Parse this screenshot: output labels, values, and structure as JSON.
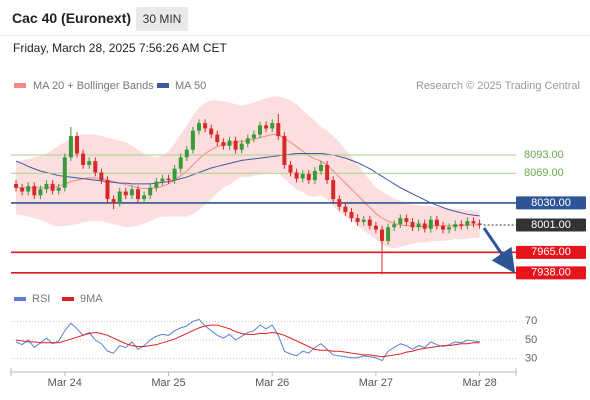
{
  "header": {
    "title": "Cac 40 (Euronext)",
    "interval": "30 MIN",
    "timestamp": "Friday, March 28, 2025 7:56:26 AM CET"
  },
  "chart_data": [
    {
      "type": "candlestick",
      "source": "Research © 2025 Trading Central",
      "ylim": [
        7922,
        8172
      ],
      "up_color": "#3a9a3a",
      "down_color": "#d62a2a",
      "categories": [
        null,
        null,
        null,
        null,
        null,
        null,
        null,
        null,
        "Mar 24",
        null,
        null,
        null,
        null,
        null,
        null,
        null,
        null,
        null,
        null,
        null,
        null,
        null,
        null,
        null,
        null,
        "Mar 25",
        null,
        null,
        null,
        null,
        null,
        null,
        null,
        null,
        null,
        null,
        null,
        null,
        null,
        null,
        null,
        null,
        "Mar 26",
        null,
        null,
        null,
        null,
        null,
        null,
        null,
        null,
        null,
        null,
        null,
        null,
        null,
        null,
        null,
        null,
        "Mar 27",
        null,
        null,
        null,
        null,
        null,
        null,
        null,
        null,
        null,
        null,
        null,
        null,
        null,
        null,
        null,
        null,
        "Mar 28"
      ],
      "open": [
        8055,
        8050,
        8045,
        8052,
        8040,
        8048,
        8055,
        8046,
        8050,
        8090,
        8118,
        8095,
        8080,
        8085,
        8070,
        8060,
        8035,
        8030,
        8045,
        8040,
        8048,
        8035,
        8040,
        8050,
        8058,
        8062,
        8060,
        8075,
        8090,
        8100,
        8125,
        8135,
        8128,
        8120,
        8110,
        8105,
        8112,
        8100,
        8108,
        8115,
        8120,
        8132,
        8128,
        8135,
        8118,
        8080,
        8070,
        8062,
        8068,
        8060,
        8072,
        8080,
        8060,
        8035,
        8025,
        8018,
        8010,
        8005,
        8008,
        8000,
        7995,
        7980,
        7998,
        8002,
        8010,
        8005,
        7998,
        8003,
        7996,
        8008,
        8000,
        7995,
        7998,
        8002,
        8000,
        8006,
        8003
      ],
      "high": [
        8060,
        8055,
        8057,
        8057,
        8053,
        8060,
        8060,
        8055,
        8095,
        8130,
        8123,
        8100,
        8090,
        8090,
        8075,
        8065,
        8040,
        8050,
        8050,
        8053,
        8053,
        8045,
        8055,
        8063,
        8067,
        8067,
        8080,
        8095,
        8105,
        8130,
        8140,
        8140,
        8133,
        8125,
        8115,
        8117,
        8117,
        8113,
        8120,
        8125,
        8137,
        8137,
        8140,
        8147,
        8123,
        8085,
        8075,
        8073,
        8073,
        8077,
        8085,
        8085,
        8065,
        8040,
        8030,
        8023,
        8015,
        8013,
        8013,
        8005,
        8000,
        8003,
        8007,
        8015,
        8015,
        8010,
        8008,
        8008,
        8013,
        8013,
        8005,
        8003,
        8007,
        8007,
        8011,
        8011,
        8008
      ],
      "low": [
        8045,
        8040,
        8040,
        8035,
        8035,
        8043,
        8041,
        8041,
        8045,
        8085,
        8090,
        8075,
        8075,
        8065,
        8055,
        8030,
        8022,
        8025,
        8035,
        8035,
        8030,
        8030,
        8035,
        8045,
        8053,
        8055,
        8055,
        8070,
        8085,
        8095,
        8120,
        8123,
        8115,
        8105,
        8100,
        8100,
        8095,
        8095,
        8103,
        8110,
        8115,
        8123,
        8123,
        8113,
        8075,
        8065,
        8057,
        8057,
        8055,
        8055,
        8067,
        8055,
        8030,
        8020,
        8013,
        8005,
        8000,
        8000,
        7995,
        7990,
        7936,
        7975,
        7993,
        7997,
        8000,
        7993,
        7993,
        7991,
        7991,
        7995,
        7990,
        7990,
        7993,
        7995,
        7995,
        7998,
        7996
      ],
      "close": [
        8050,
        8045,
        8052,
        8040,
        8048,
        8055,
        8046,
        8050,
        8090,
        8118,
        8095,
        8080,
        8085,
        8070,
        8060,
        8035,
        8030,
        8045,
        8040,
        8048,
        8035,
        8040,
        8050,
        8058,
        8062,
        8060,
        8075,
        8090,
        8100,
        8125,
        8135,
        8128,
        8120,
        8110,
        8105,
        8112,
        8100,
        8108,
        8115,
        8120,
        8132,
        8128,
        8135,
        8118,
        8080,
        8070,
        8062,
        8068,
        8060,
        8072,
        8080,
        8060,
        8035,
        8025,
        8018,
        8010,
        8005,
        8008,
        8000,
        7995,
        7980,
        7998,
        8002,
        8010,
        8005,
        7998,
        8003,
        7996,
        8008,
        8000,
        7995,
        7998,
        8002,
        8000,
        8006,
        8003,
        8001
      ],
      "series": [
        {
          "name": "MA 20 + Bollinger Bands",
          "color": "#f28b82",
          "band_color": "#fbd3d3",
          "values": [
            8050,
            8050,
            8050,
            8050,
            8050,
            8050,
            8050,
            8052,
            8055,
            8058,
            8060,
            8062,
            8063,
            8063,
            8062,
            8060,
            8058,
            8056,
            8054,
            8052,
            8050,
            8049,
            8049,
            8050,
            8052,
            8055,
            8060,
            8066,
            8072,
            8080,
            8088,
            8095,
            8100,
            8104,
            8107,
            8108,
            8110,
            8111,
            8112,
            8114,
            8116,
            8118,
            8120,
            8120,
            8115,
            8110,
            8104,
            8098,
            8092,
            8088,
            8085,
            8080,
            8072,
            8064,
            8056,
            8048,
            8040,
            8032,
            8024,
            8016,
            8010,
            8006,
            8003,
            8001,
            8000,
            8000,
            7999,
            7999,
            8000,
            8000,
            8000,
            8000,
            8000,
            8000,
            8001,
            8001,
            8001
          ],
          "upper": [
            8085,
            8086,
            8088,
            8090,
            8092,
            8095,
            8100,
            8105,
            8110,
            8115,
            8118,
            8120,
            8120,
            8120,
            8118,
            8116,
            8114,
            8112,
            8110,
            8105,
            8100,
            8095,
            8092,
            8090,
            8092,
            8098,
            8108,
            8120,
            8132,
            8145,
            8155,
            8162,
            8165,
            8165,
            8164,
            8162,
            8160,
            8158,
            8160,
            8162,
            8165,
            8168,
            8170,
            8170,
            8168,
            8165,
            8160,
            8152,
            8145,
            8138,
            8130,
            8125,
            8118,
            8110,
            8100,
            8090,
            8080,
            8070,
            8060,
            8050,
            8045,
            8040,
            8036,
            8033,
            8030,
            8028,
            8027,
            8026,
            8026,
            8025,
            8024,
            8023,
            8022,
            8022,
            8021,
            8020,
            8020
          ],
          "lower": [
            8015,
            8014,
            8012,
            8010,
            8008,
            8005,
            8000,
            7999,
            8000,
            8001,
            8002,
            8004,
            8006,
            8006,
            8006,
            8004,
            8002,
            8000,
            7998,
            7999,
            8000,
            8003,
            8006,
            8010,
            8012,
            8012,
            8012,
            8012,
            8012,
            8015,
            8021,
            8028,
            8035,
            8043,
            8050,
            8054,
            8060,
            8064,
            8064,
            8066,
            8067,
            8068,
            8070,
            8070,
            8062,
            8055,
            8048,
            8044,
            8039,
            8038,
            8040,
            8035,
            8026,
            8018,
            8012,
            8006,
            8000,
            7994,
            7988,
            7982,
            7975,
            7972,
            7970,
            7972,
            7974,
            7976,
            7978,
            7978,
            7979,
            7980,
            7980,
            7981,
            7982,
            7982,
            7983,
            7984,
            7984
          ]
        },
        {
          "name": "MA 50",
          "color": "#3d5a9e",
          "values": [
            8085,
            8082,
            8078,
            8075,
            8072,
            8070,
            8068,
            8066,
            8065,
            8064,
            8063,
            8062,
            8061,
            8060,
            8059,
            8058,
            8057,
            8056,
            8056,
            8055,
            8055,
            8055,
            8055,
            8056,
            8057,
            8058,
            8060,
            8062,
            8064,
            8067,
            8070,
            8073,
            8076,
            8078,
            8080,
            8082,
            8084,
            8086,
            8087,
            8088,
            8089,
            8090,
            8091,
            8092,
            8093,
            8094,
            8095,
            8095,
            8095,
            8095,
            8095,
            8094,
            8093,
            8091,
            8089,
            8086,
            8083,
            8079,
            8075,
            8070,
            8065,
            8060,
            8055,
            8050,
            8046,
            8042,
            8038,
            8034,
            8030,
            8027,
            8024,
            8021,
            8019,
            8017,
            8015,
            8014,
            8013
          ]
        }
      ],
      "levels": [
        {
          "value": 8093,
          "label": "8093.00",
          "color": "#a9d18e",
          "text_color": "#6aa84f",
          "boxed": false
        },
        {
          "value": 8069,
          "label": "8069.00",
          "color": "#a9d18e",
          "text_color": "#6aa84f",
          "boxed": false
        },
        {
          "value": 8030,
          "label": "8030.00",
          "color": "#2f5597",
          "text_color": "#ffffff",
          "boxed": true
        },
        {
          "value": 8001,
          "label": "8001.00",
          "color": "#333333",
          "text_color": "#ffffff",
          "boxed": true,
          "current": true
        },
        {
          "value": 7965,
          "label": "7965.00",
          "color": "#e8141c",
          "text_color": "#ffffff",
          "boxed": true
        },
        {
          "value": 7938,
          "label": "7938.00",
          "color": "#e8141c",
          "text_color": "#ffffff",
          "boxed": true
        }
      ]
    },
    {
      "type": "line",
      "ylim": [
        20,
        80
      ],
      "yticks": [
        70,
        50,
        30
      ],
      "grid": true,
      "series": [
        {
          "name": "RSI",
          "color": "#5b7fd6",
          "values": [
            48,
            45,
            50,
            42,
            47,
            52,
            46,
            49,
            60,
            68,
            62,
            55,
            58,
            50,
            46,
            38,
            36,
            44,
            42,
            48,
            40,
            44,
            50,
            54,
            56,
            55,
            60,
            63,
            65,
            70,
            72,
            65,
            60,
            55,
            52,
            56,
            50,
            54,
            58,
            60,
            66,
            62,
            66,
            55,
            38,
            35,
            33,
            38,
            36,
            42,
            46,
            40,
            34,
            33,
            32,
            31,
            31,
            33,
            32,
            31,
            28,
            38,
            42,
            46,
            44,
            40,
            44,
            42,
            48,
            45,
            43,
            45,
            48,
            47,
            50,
            49,
            48
          ]
        },
        {
          "name": "9MA",
          "color": "#e02020",
          "values": [
            50,
            49,
            48,
            48,
            47,
            47,
            47,
            47,
            49,
            51,
            53,
            55,
            57,
            58,
            57,
            55,
            52,
            49,
            46,
            44,
            43,
            43,
            44,
            45,
            47,
            49,
            51,
            54,
            57,
            60,
            63,
            65,
            66,
            66,
            64,
            62,
            59,
            57,
            56,
            56,
            57,
            57,
            58,
            57,
            55,
            52,
            49,
            46,
            43,
            40,
            39,
            39,
            38,
            38,
            37,
            36,
            35,
            34,
            34,
            33,
            32,
            33,
            34,
            35,
            37,
            38,
            40,
            41,
            42,
            43,
            44,
            44,
            45,
            46,
            46,
            47,
            47
          ]
        }
      ]
    }
  ]
}
